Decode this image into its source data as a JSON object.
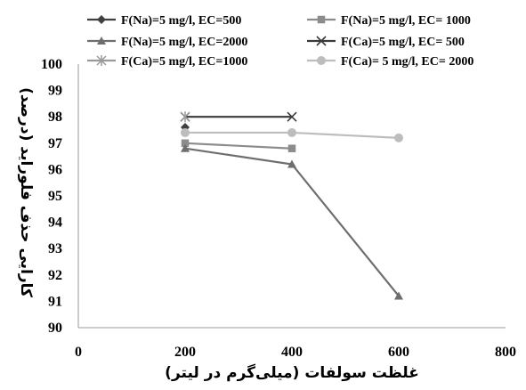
{
  "chart_data": {
    "type": "line",
    "xlabel": "غلظت سولفات (میلی‌گرم در لیتر)",
    "ylabel": "کارایی حذف فلوراید (درصد)",
    "xlim": [
      0,
      800
    ],
    "ylim": [
      90,
      100
    ],
    "x_ticks": [
      "0",
      "200",
      "400",
      "600",
      "800"
    ],
    "y_ticks": [
      "90",
      "91",
      "92",
      "93",
      "94",
      "95",
      "96",
      "97",
      "98",
      "99",
      "100"
    ],
    "grid": false,
    "legend_position": "top",
    "series": [
      {
        "name": "F(Na)=5 mg/l, EC=500",
        "x": [
          200
        ],
        "y": [
          97.6
        ],
        "color": "#404040",
        "marker": "diamond"
      },
      {
        "name": "F(Na)=5 mg/l, EC= 1000",
        "x": [
          200,
          400
        ],
        "y": [
          97.0,
          96.8
        ],
        "color": "#8c8c8c",
        "marker": "square"
      },
      {
        "name": "F(Na)=5 mg/l, EC=2000",
        "x": [
          200,
          400,
          600
        ],
        "y": [
          96.8,
          96.2,
          91.2
        ],
        "color": "#6e6e6e",
        "marker": "triangle"
      },
      {
        "name": "F(Ca)=5 mg/l, EC= 500",
        "x": [
          200,
          400
        ],
        "y": [
          98.0,
          98.0
        ],
        "color": "#3a3a3a",
        "marker": "x"
      },
      {
        "name": "F(Ca)=5 mg/l, EC=1000",
        "x": [
          200
        ],
        "y": [
          98.0
        ],
        "color": "#9a9a9a",
        "marker": "star"
      },
      {
        "name": "F(Ca)= 5 mg/l, EC= 2000",
        "x": [
          200,
          400,
          600
        ],
        "y": [
          97.4,
          97.4,
          97.2
        ],
        "color": "#bdbdbd",
        "marker": "circle"
      }
    ]
  }
}
